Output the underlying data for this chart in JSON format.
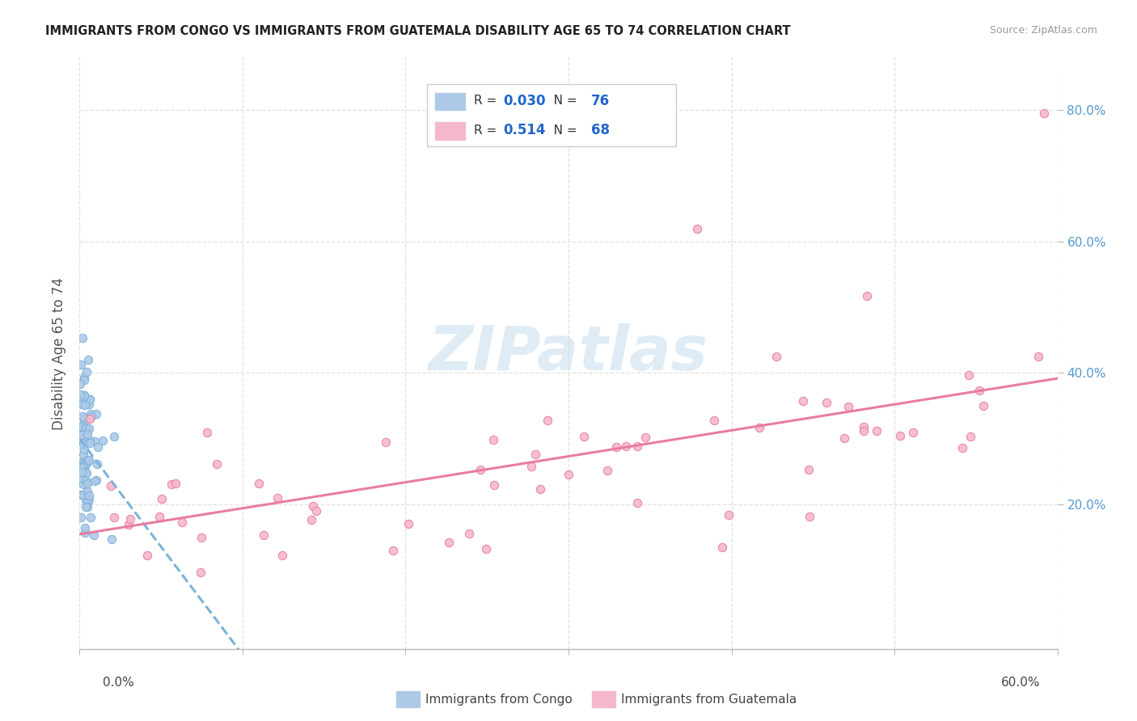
{
  "title": "IMMIGRANTS FROM CONGO VS IMMIGRANTS FROM GUATEMALA DISABILITY AGE 65 TO 74 CORRELATION CHART",
  "source": "Source: ZipAtlas.com",
  "ylabel": "Disability Age 65 to 74",
  "xlim": [
    0.0,
    0.6
  ],
  "ylim": [
    -0.02,
    0.88
  ],
  "congo_fill": "#aec9e8",
  "congo_edge": "#7ab3d9",
  "guatemala_fill": "#f5b8cb",
  "guatemala_edge": "#e87da0",
  "trendline_congo": "#7ab3d9",
  "trendline_guatemala": "#e87da0",
  "legend_R_congo": "0.030",
  "legend_N_congo": "76",
  "legend_R_guatemala": "0.514",
  "legend_N_guatemala": "68",
  "n_congo": 76,
  "n_guatemala": 68,
  "watermark": "ZIPatlas",
  "background_color": "#ffffff",
  "grid_color": "#e0e0e0",
  "title_color": "#222222",
  "source_color": "#999999",
  "axis_label_color": "#555555",
  "tick_color": "#5599cc"
}
